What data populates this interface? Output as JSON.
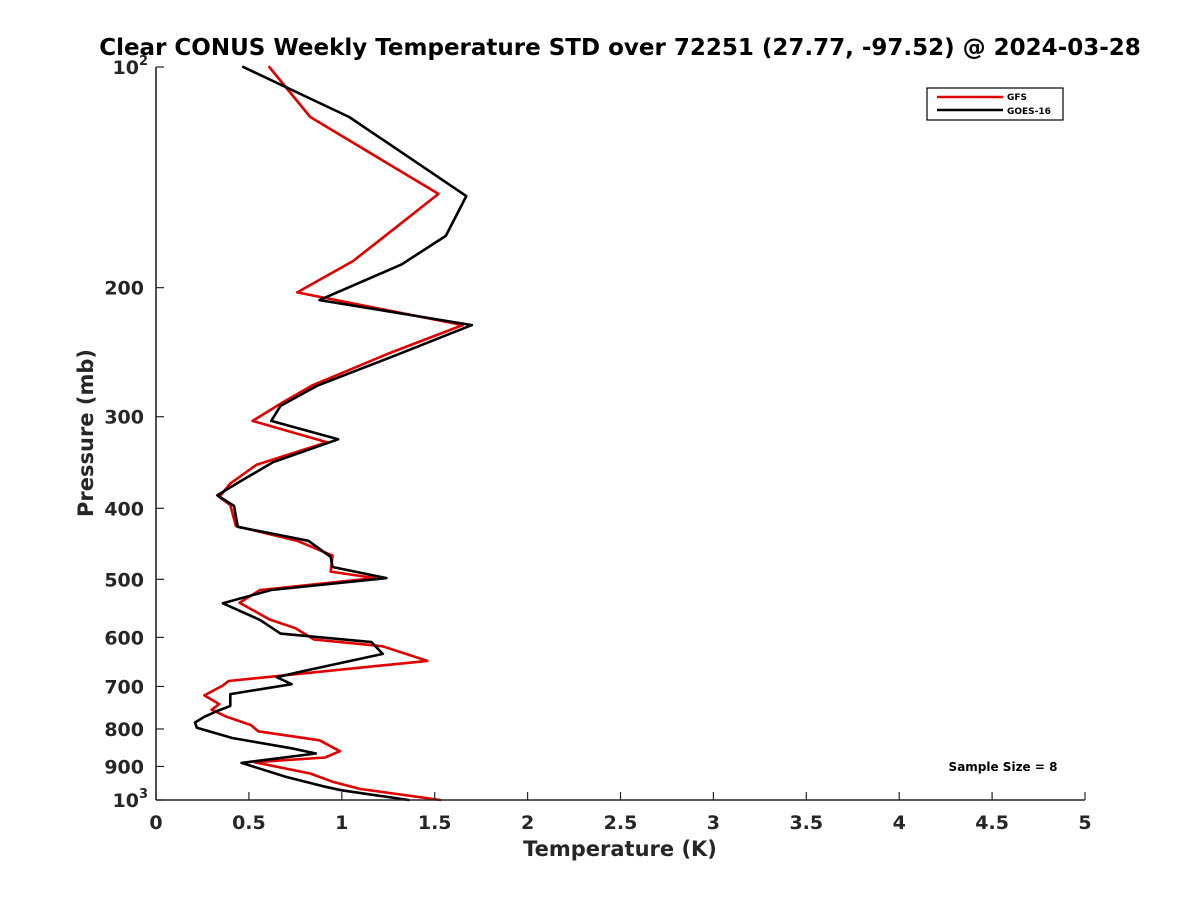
{
  "chart_data": {
    "type": "line",
    "title": "Clear CONUS Weekly Temperature STD over 72251 (27.77, -97.52) @ 2024-03-28",
    "xlabel": "Temperature (K)",
    "ylabel": "Pressure (mb)",
    "xlim": [
      0,
      5
    ],
    "ylim": [
      100,
      1000
    ],
    "y_scale": "log",
    "y_reversed": true,
    "grid": false,
    "legend_position": "top-right",
    "x_ticks": [
      0,
      0.5,
      1,
      1.5,
      2,
      2.5,
      3,
      3.5,
      4,
      4.5,
      5
    ],
    "x_tick_labels": [
      "0",
      "0.5",
      "1",
      "1.5",
      "2",
      "2.5",
      "3",
      "3.5",
      "4",
      "4.5",
      "5"
    ],
    "y_ticks": [
      {
        "value": 100,
        "base": "10",
        "exp": "2"
      },
      {
        "value": 200,
        "label": "200"
      },
      {
        "value": 300,
        "label": "300"
      },
      {
        "value": 400,
        "label": "400"
      },
      {
        "value": 500,
        "label": "500"
      },
      {
        "value": 600,
        "label": "600"
      },
      {
        "value": 700,
        "label": "700"
      },
      {
        "value": 800,
        "label": "800"
      },
      {
        "value": 900,
        "label": "900"
      },
      {
        "value": 1000,
        "base": "10",
        "exp": "3"
      }
    ],
    "annotation": "Sample Size = 8",
    "series": [
      {
        "name": "GFS",
        "color": "#e00000",
        "points": [
          [
            0.61,
            100
          ],
          [
            0.83,
            117
          ],
          [
            1.52,
            149
          ],
          [
            1.22,
            171
          ],
          [
            1.06,
            184
          ],
          [
            0.76,
            203
          ],
          [
            1.65,
            225
          ],
          [
            1.25,
            246
          ],
          [
            0.84,
            272
          ],
          [
            0.68,
            287
          ],
          [
            0.52,
            304
          ],
          [
            0.92,
            325
          ],
          [
            0.54,
            349
          ],
          [
            0.4,
            370
          ],
          [
            0.34,
            386
          ],
          [
            0.4,
            396
          ],
          [
            0.43,
            423
          ],
          [
            0.76,
            443
          ],
          [
            0.95,
            464
          ],
          [
            0.94,
            488
          ],
          [
            1.18,
            498
          ],
          [
            0.56,
            517
          ],
          [
            0.45,
            538
          ],
          [
            0.61,
            567
          ],
          [
            0.75,
            583
          ],
          [
            0.85,
            604
          ],
          [
            1.22,
            617
          ],
          [
            1.46,
            646
          ],
          [
            0.39,
            688
          ],
          [
            0.36,
            698
          ],
          [
            0.26,
            720
          ],
          [
            0.34,
            740
          ],
          [
            0.3,
            753
          ],
          [
            0.38,
            770
          ],
          [
            0.51,
            790
          ],
          [
            0.55,
            806
          ],
          [
            0.88,
            829
          ],
          [
            0.99,
            858
          ],
          [
            0.91,
            875
          ],
          [
            0.53,
            888
          ],
          [
            0.83,
            920
          ],
          [
            0.95,
            944
          ],
          [
            1.1,
            966
          ],
          [
            1.53,
            1000
          ]
        ]
      },
      {
        "name": "GOES-16",
        "color": "#000000",
        "points": [
          [
            0.47,
            100
          ],
          [
            1.04,
            117
          ],
          [
            1.67,
            150
          ],
          [
            1.56,
            170
          ],
          [
            1.32,
            186
          ],
          [
            0.88,
            208
          ],
          [
            1.7,
            225
          ],
          [
            1.28,
            248
          ],
          [
            0.87,
            272
          ],
          [
            0.67,
            290
          ],
          [
            0.62,
            304
          ],
          [
            0.98,
            322
          ],
          [
            0.63,
            346
          ],
          [
            0.45,
            368
          ],
          [
            0.33,
            384
          ],
          [
            0.42,
            397
          ],
          [
            0.44,
            424
          ],
          [
            0.82,
            443
          ],
          [
            0.94,
            466
          ],
          [
            0.95,
            481
          ],
          [
            1.24,
            498
          ],
          [
            0.62,
            517
          ],
          [
            0.36,
            539
          ],
          [
            0.56,
            568
          ],
          [
            0.67,
            593
          ],
          [
            1.16,
            609
          ],
          [
            1.22,
            632
          ],
          [
            0.78,
            668
          ],
          [
            0.65,
            680
          ],
          [
            0.73,
            695
          ],
          [
            0.4,
            717
          ],
          [
            0.4,
            744
          ],
          [
            0.33,
            756
          ],
          [
            0.26,
            770
          ],
          [
            0.21,
            784
          ],
          [
            0.22,
            797
          ],
          [
            0.41,
            823
          ],
          [
            0.73,
            850
          ],
          [
            0.86,
            864
          ],
          [
            0.46,
            890
          ],
          [
            0.7,
            930
          ],
          [
            0.9,
            958
          ],
          [
            1.0,
            970
          ],
          [
            1.36,
            1000
          ]
        ]
      }
    ]
  }
}
